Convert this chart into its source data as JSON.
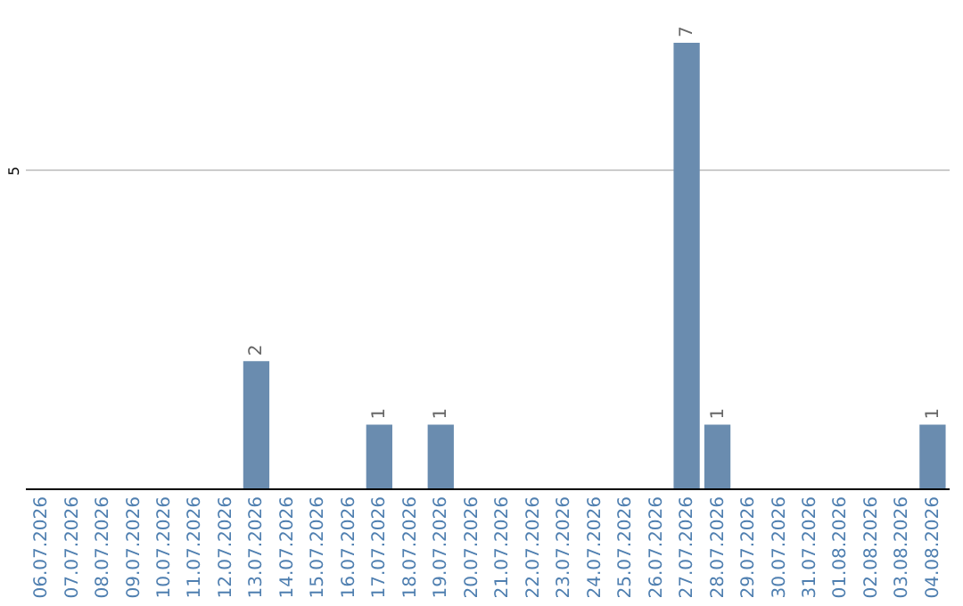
{
  "chart_data": {
    "type": "bar",
    "categories": [
      "06.07.2026",
      "07.07.2026",
      "08.07.2026",
      "09.07.2026",
      "10.07.2026",
      "11.07.2026",
      "12.07.2026",
      "13.07.2026",
      "14.07.2026",
      "15.07.2026",
      "16.07.2026",
      "17.07.2026",
      "18.07.2026",
      "19.07.2026",
      "20.07.2026",
      "21.07.2026",
      "22.07.2026",
      "23.07.2026",
      "24.07.2026",
      "25.07.2026",
      "26.07.2026",
      "27.07.2026",
      "28.07.2026",
      "29.07.2026",
      "30.07.2026",
      "31.07.2026",
      "01.08.2026",
      "02.08.2026",
      "03.08.2026",
      "04.08.2026"
    ],
    "values": [
      0,
      0,
      0,
      0,
      0,
      0,
      0,
      2,
      0,
      0,
      0,
      1,
      0,
      1,
      0,
      0,
      0,
      0,
      0,
      0,
      0,
      7,
      1,
      0,
      0,
      0,
      0,
      0,
      0,
      1
    ],
    "value_labels": [
      null,
      null,
      null,
      null,
      null,
      null,
      null,
      "2",
      null,
      null,
      null,
      "1",
      null,
      "1",
      null,
      null,
      null,
      null,
      null,
      null,
      null,
      "7",
      "1",
      null,
      null,
      null,
      null,
      null,
      null,
      "1"
    ],
    "color": "#6a8caf",
    "ylim": [
      0,
      7
    ],
    "yticks": [
      5
    ],
    "grid": "y"
  }
}
